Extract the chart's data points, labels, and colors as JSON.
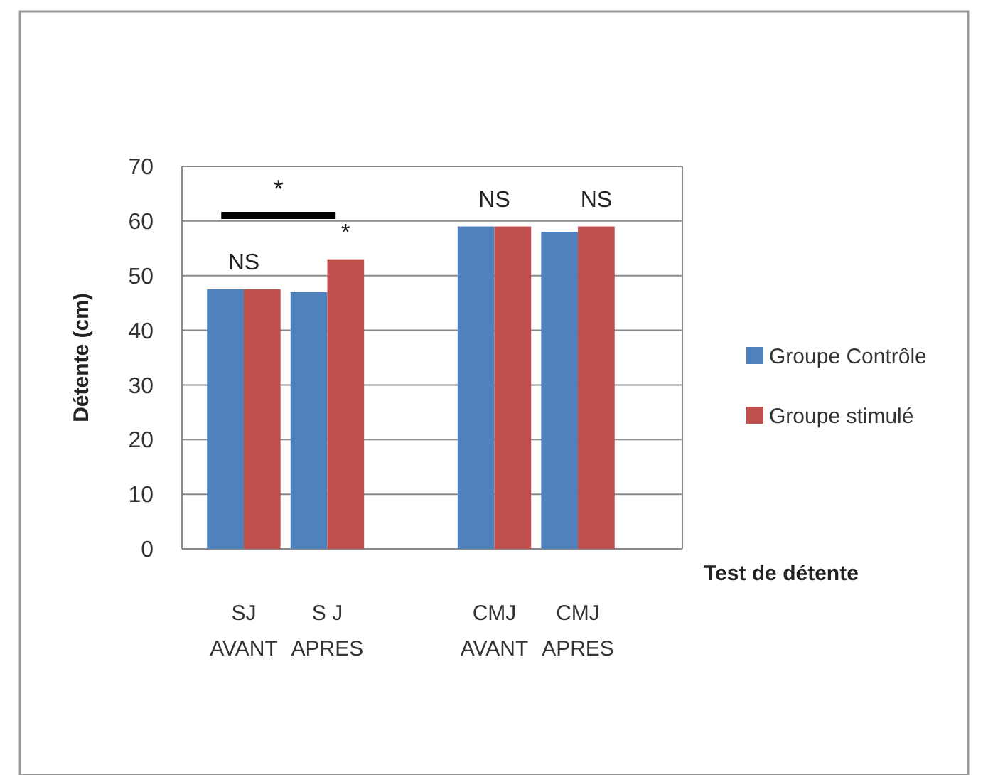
{
  "chart_data": {
    "type": "bar",
    "ylabel": "Détente (cm)",
    "xlabel": "Test de détente",
    "categories": [
      "SJ\nAVANT",
      "S J\nAPRES",
      null,
      "CMJ\nAVANT",
      "CMJ\nAPRES"
    ],
    "series": [
      {
        "name": "Groupe Contrôle",
        "color": "#4f81bd",
        "values": [
          47.5,
          47,
          null,
          59,
          58
        ]
      },
      {
        "name": "Groupe stimulé",
        "color": "#c0504d",
        "values": [
          47.5,
          53,
          null,
          59,
          59
        ]
      }
    ],
    "ylim": [
      0,
      70
    ],
    "yticks": [
      0,
      10,
      20,
      30,
      40,
      50,
      60,
      70
    ],
    "grid": "y",
    "legend": "right",
    "annotations": [
      "NS",
      "*",
      "NS",
      "NS",
      "*"
    ]
  }
}
